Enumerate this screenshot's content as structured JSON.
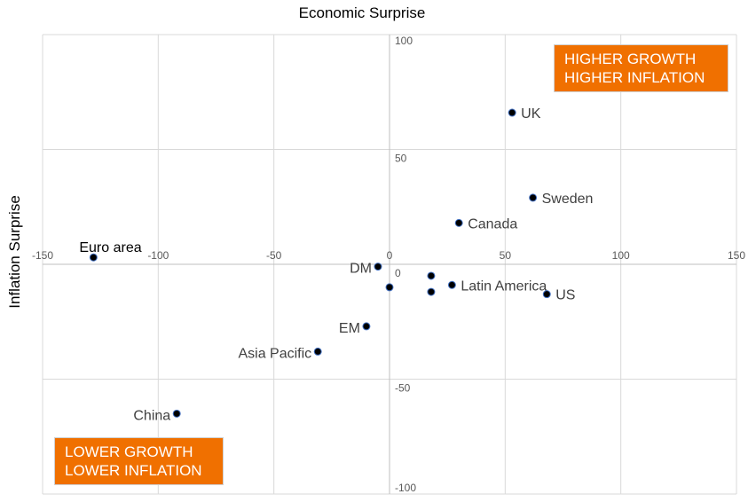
{
  "chart_data": {
    "type": "scatter",
    "title": "Economic Surprise",
    "xlabel": "Economic Surprise",
    "ylabel": "Inflation Surprise",
    "xlim": [
      -150,
      150
    ],
    "ylim": [
      -100,
      100
    ],
    "xticks": [
      -150,
      -100,
      -50,
      0,
      50,
      100,
      150
    ],
    "yticks": [
      -100,
      -50,
      0,
      50,
      100
    ],
    "grid": true,
    "marker_color": "#000000",
    "marker_edge_color": "#4472c4",
    "points": [
      {
        "label": "UK",
        "x": 53,
        "y": 66,
        "label_pos": "right"
      },
      {
        "label": "Sweden",
        "x": 62,
        "y": 29,
        "label_pos": "right"
      },
      {
        "label": "Canada",
        "x": 30,
        "y": 18,
        "label_pos": "right"
      },
      {
        "label": "Euro area",
        "x": -128,
        "y": 3,
        "label_pos": "above"
      },
      {
        "label": "DM",
        "x": -5,
        "y": -1,
        "label_pos": "left"
      },
      {
        "label": "",
        "x": 0,
        "y": -10,
        "label_pos": "none"
      },
      {
        "label": "",
        "x": 18,
        "y": -5,
        "label_pos": "none"
      },
      {
        "label": "",
        "x": 18,
        "y": -12,
        "label_pos": "none"
      },
      {
        "label": "Latin America",
        "x": 27,
        "y": -9,
        "label_pos": "right"
      },
      {
        "label": "US",
        "x": 68,
        "y": -13,
        "label_pos": "right"
      },
      {
        "label": "EM",
        "x": -10,
        "y": -27,
        "label_pos": "left"
      },
      {
        "label": "Asia Pacific",
        "x": -31,
        "y": -38,
        "label_pos": "left"
      },
      {
        "label": "China",
        "x": -92,
        "y": -65,
        "label_pos": "left"
      }
    ],
    "annotations": {
      "top_right": [
        "HIGHER GROWTH",
        "HIGHER INFLATION"
      ],
      "bottom_left": [
        "LOWER GROWTH",
        "LOWER INFLATION"
      ],
      "box_color": "#f07000"
    }
  }
}
